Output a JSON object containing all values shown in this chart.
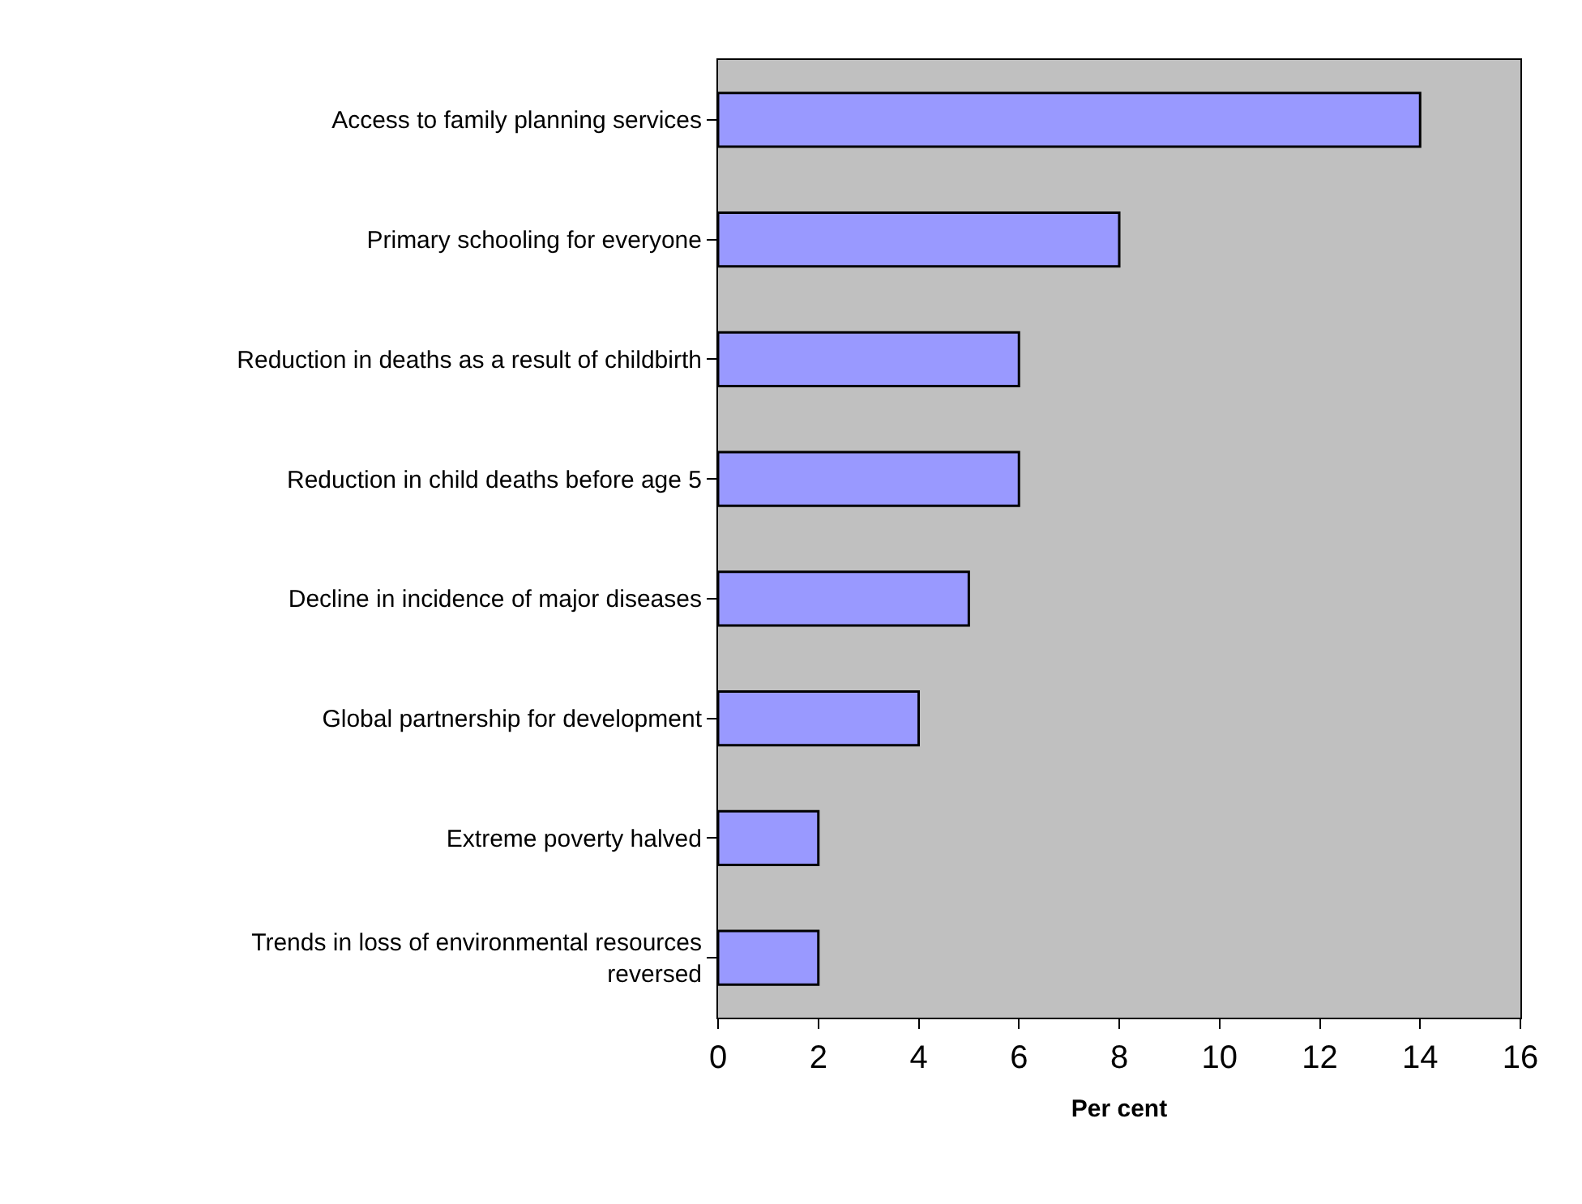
{
  "chart_data": {
    "type": "bar",
    "orientation": "horizontal",
    "xlabel": "Per cent",
    "categories": [
      "Access to family planning services",
      "Primary schooling for everyone",
      "Reduction in deaths as a result of childbirth",
      "Reduction in child deaths before age 5",
      "Decline in incidence of major diseases",
      "Global partnership for development",
      "Extreme poverty halved",
      "Trends in loss of environmental resources\nreversed"
    ],
    "values": [
      14,
      8,
      6,
      6,
      5,
      4,
      2,
      2
    ],
    "color": "#9999ff",
    "xlim": [
      0,
      16
    ],
    "xticks": [
      0,
      2,
      4,
      6,
      8,
      10,
      12,
      14,
      16
    ],
    "grid": false
  }
}
